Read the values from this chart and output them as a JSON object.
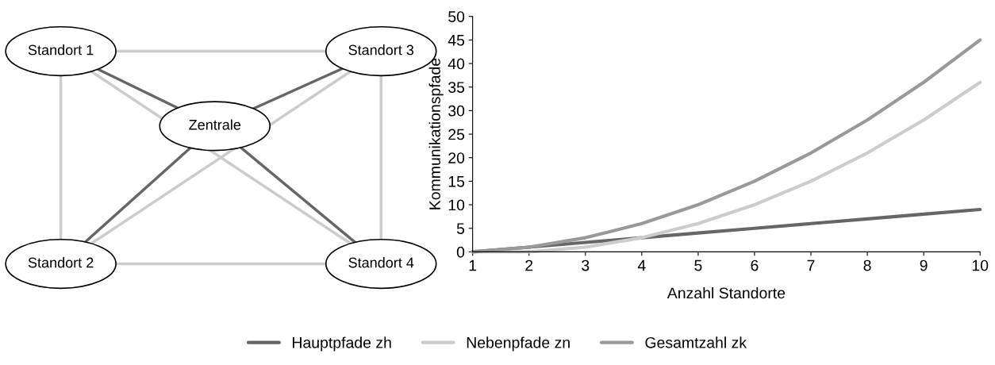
{
  "chart_data": [
    {
      "type": "other",
      "annotations": [
        "Standort 1",
        "Standort 3",
        "Zentrale",
        "Standort 2",
        "Standort 4"
      ]
    },
    {
      "type": "line",
      "xlabel": "Anzahl Standorte",
      "ylabel": "Kommunikationspfade",
      "x": [
        1,
        2,
        3,
        4,
        5,
        6,
        7,
        8,
        9,
        10
      ],
      "xlim": [
        1,
        10
      ],
      "xticks": [
        1,
        2,
        3,
        4,
        5,
        6,
        7,
        8,
        9,
        10
      ],
      "ylim": [
        0,
        50
      ],
      "yticks": [
        0,
        5,
        10,
        15,
        20,
        25,
        30,
        35,
        40,
        45,
        50
      ],
      "grid": false,
      "legend": "bottom",
      "marker": "none",
      "line_style": "solid",
      "series": [
        {
          "name": "Hauptpfade zh",
          "color": "#666666",
          "values": [
            0,
            1,
            2,
            3,
            4,
            5,
            6,
            7,
            8,
            9
          ]
        },
        {
          "name": "Nebenpfade zn",
          "color": "#cccccc",
          "values": [
            0,
            0,
            1,
            3,
            6,
            10,
            15,
            21,
            28,
            36
          ]
        },
        {
          "name": "Gesamtzahl zk",
          "color": "#999999",
          "values": [
            0,
            1,
            3,
            6,
            10,
            15,
            21,
            28,
            36,
            45
          ]
        }
      ]
    }
  ]
}
